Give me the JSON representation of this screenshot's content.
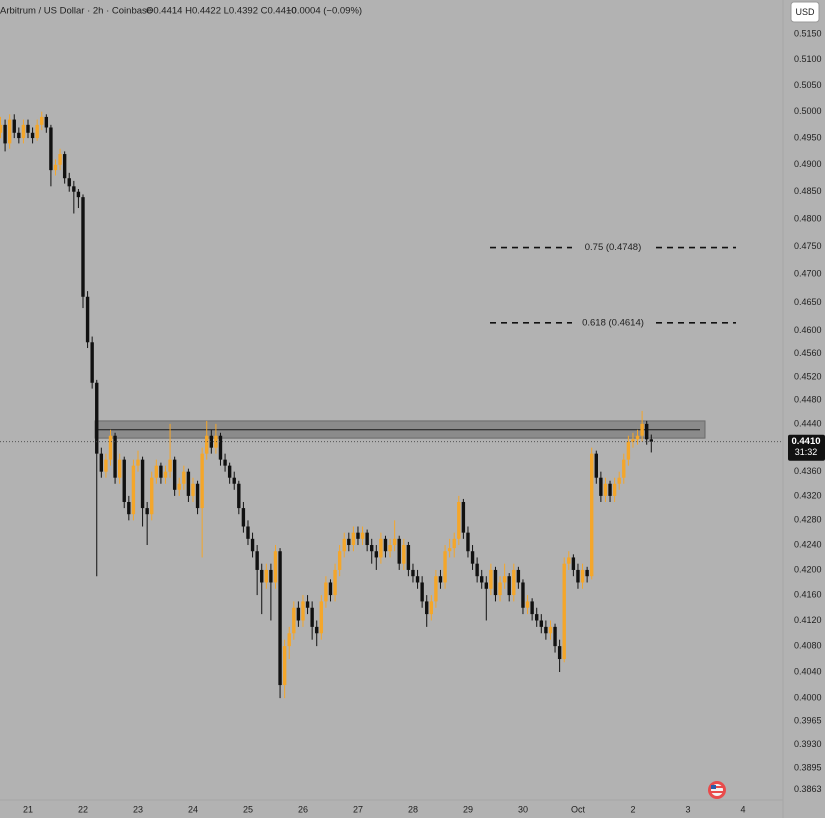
{
  "header": {
    "title": "Arbitrum / US Dollar · 2h · Coinbase",
    "legend": "O0.4414 H0.4422 L0.4392 C0.4410",
    "change": "−0.0004 (−0.09%)",
    "currency": "USD",
    "countdown": "31:32"
  },
  "chart_data": {
    "type": "candlestick",
    "log_scale": true,
    "grid": false,
    "up_color": "#f4a62a",
    "down_color": "#111111",
    "ylim": [
      0.3848,
      0.5217
    ],
    "yticks": [
      {
        "value": 0.515,
        "label": "0.5150"
      },
      {
        "value": 0.51,
        "label": "0.5100"
      },
      {
        "value": 0.505,
        "label": "0.5050"
      },
      {
        "value": 0.5,
        "label": "0.5000"
      },
      {
        "value": 0.495,
        "label": "0.4950"
      },
      {
        "value": 0.49,
        "label": "0.4900"
      },
      {
        "value": 0.485,
        "label": "0.4850"
      },
      {
        "value": 0.48,
        "label": "0.4800"
      },
      {
        "value": 0.475,
        "label": "0.4750"
      },
      {
        "value": 0.47,
        "label": "0.4700"
      },
      {
        "value": 0.465,
        "label": "0.4650"
      },
      {
        "value": 0.46,
        "label": "0.4600"
      },
      {
        "value": 0.456,
        "label": "0.4560"
      },
      {
        "value": 0.452,
        "label": "0.4520"
      },
      {
        "value": 0.448,
        "label": "0.4480"
      },
      {
        "value": 0.444,
        "label": "0.4440"
      },
      {
        "value": 0.436,
        "label": "0.4360"
      },
      {
        "value": 0.432,
        "label": "0.4320"
      },
      {
        "value": 0.428,
        "label": "0.4280"
      },
      {
        "value": 0.424,
        "label": "0.4240"
      },
      {
        "value": 0.42,
        "label": "0.4200"
      },
      {
        "value": 0.416,
        "label": "0.4160"
      },
      {
        "value": 0.412,
        "label": "0.4120"
      },
      {
        "value": 0.408,
        "label": "0.4080"
      },
      {
        "value": 0.404,
        "label": "0.4040"
      },
      {
        "value": 0.4,
        "label": "0.4000"
      },
      {
        "value": 0.3965,
        "label": "0.3965"
      },
      {
        "value": 0.393,
        "label": "0.3930"
      },
      {
        "value": 0.3895,
        "label": "0.3895"
      },
      {
        "value": 0.3863,
        "label": "0.3863"
      }
    ],
    "last_price": {
      "value": 0.441,
      "label": "0.4410"
    },
    "zone": {
      "top": 0.4445,
      "bottom": 0.4416,
      "line": 0.443
    },
    "annotations": [
      {
        "label": "0.75 (0.4748)",
        "value": 0.4748
      },
      {
        "label": "0.618 (0.4614)",
        "value": 0.4614
      }
    ],
    "categories": [
      null,
      null,
      null,
      null,
      null,
      null,
      "21",
      null,
      null,
      null,
      null,
      null,
      null,
      null,
      null,
      null,
      null,
      null,
      "22",
      null,
      null,
      null,
      null,
      null,
      null,
      null,
      null,
      null,
      null,
      null,
      "23",
      null,
      null,
      null,
      null,
      null,
      null,
      null,
      null,
      null,
      null,
      null,
      "24",
      null,
      null,
      null,
      null,
      null,
      null,
      null,
      null,
      null,
      null,
      null,
      "25",
      null,
      null,
      null,
      null,
      null,
      null,
      null,
      null,
      null,
      null,
      null,
      "26",
      null,
      null,
      null,
      null,
      null,
      null,
      null,
      null,
      null,
      null,
      null,
      "27",
      null,
      null,
      null,
      null,
      null,
      null,
      null,
      null,
      null,
      null,
      null,
      "28",
      null,
      null,
      null,
      null,
      null,
      null,
      null,
      null,
      null,
      null,
      null,
      "29",
      null,
      null,
      null,
      null,
      null,
      null,
      null,
      null,
      null,
      null,
      null,
      "30",
      null,
      null,
      null,
      null,
      null,
      null,
      null,
      null,
      null,
      null,
      null,
      "Oct",
      null,
      null,
      null,
      null,
      null,
      null,
      null,
      null,
      null,
      null,
      null,
      "2",
      null,
      null,
      null,
      null,
      null,
      null,
      null,
      null,
      null,
      null,
      null,
      "3",
      null,
      null,
      null,
      null,
      null,
      null,
      null,
      null,
      null,
      null,
      null,
      "4",
      null,
      null,
      null,
      null,
      null,
      null,
      null,
      null
    ],
    "ohlc": [
      [
        0.496,
        0.499,
        0.495,
        0.4975
      ],
      [
        0.4975,
        0.4985,
        0.4925,
        0.494
      ],
      [
        0.494,
        0.4995,
        0.493,
        0.4985
      ],
      [
        0.4985,
        0.4995,
        0.495,
        0.496
      ],
      [
        0.496,
        0.497,
        0.494,
        0.495
      ],
      [
        0.495,
        0.4985,
        0.494,
        0.4975
      ],
      [
        0.4975,
        0.4985,
        0.495,
        0.496
      ],
      [
        0.496,
        0.497,
        0.494,
        0.495
      ],
      [
        0.495,
        0.4985,
        0.4945,
        0.4975
      ],
      [
        0.4975,
        0.5,
        0.4965,
        0.499
      ],
      [
        0.499,
        0.4995,
        0.496,
        0.497
      ],
      [
        0.497,
        0.4975,
        0.486,
        0.489
      ],
      [
        0.489,
        0.491,
        0.488,
        0.49
      ],
      [
        0.49,
        0.493,
        0.489,
        0.492
      ],
      [
        0.492,
        0.4925,
        0.4865,
        0.4875
      ],
      [
        0.4875,
        0.4885,
        0.485,
        0.486
      ],
      [
        0.486,
        0.487,
        0.481,
        0.485
      ],
      [
        0.485,
        0.4855,
        0.482,
        0.484
      ],
      [
        0.484,
        0.4845,
        0.464,
        0.466
      ],
      [
        0.466,
        0.467,
        0.457,
        0.458
      ],
      [
        0.458,
        0.459,
        0.45,
        0.451
      ],
      [
        0.451,
        0.4515,
        0.419,
        0.439
      ],
      [
        0.439,
        0.44,
        0.435,
        0.436
      ],
      [
        0.436,
        0.439,
        0.435,
        0.438
      ],
      [
        0.438,
        0.443,
        0.437,
        0.442
      ],
      [
        0.442,
        0.4425,
        0.434,
        0.435
      ],
      [
        0.435,
        0.439,
        0.434,
        0.438
      ],
      [
        0.438,
        0.4385,
        0.43,
        0.431
      ],
      [
        0.431,
        0.432,
        0.428,
        0.429
      ],
      [
        0.429,
        0.438,
        0.428,
        0.437
      ],
      [
        0.437,
        0.4395,
        0.436,
        0.438
      ],
      [
        0.438,
        0.4385,
        0.427,
        0.43
      ],
      [
        0.43,
        0.431,
        0.424,
        0.429
      ],
      [
        0.429,
        0.436,
        0.428,
        0.435
      ],
      [
        0.435,
        0.438,
        0.434,
        0.437
      ],
      [
        0.437,
        0.4375,
        0.434,
        0.435
      ],
      [
        0.435,
        0.437,
        0.434,
        0.436
      ],
      [
        0.436,
        0.444,
        0.435,
        0.438
      ],
      [
        0.438,
        0.4385,
        0.432,
        0.433
      ],
      [
        0.433,
        0.435,
        0.432,
        0.434
      ],
      [
        0.434,
        0.437,
        0.433,
        0.436
      ],
      [
        0.436,
        0.4365,
        0.431,
        0.432
      ],
      [
        0.432,
        0.435,
        0.431,
        0.434
      ],
      [
        0.434,
        0.4345,
        0.429,
        0.43
      ],
      [
        0.43,
        0.44,
        0.422,
        0.439
      ],
      [
        0.439,
        0.4445,
        0.438,
        0.442
      ],
      [
        0.442,
        0.443,
        0.439,
        0.44
      ],
      [
        0.44,
        0.444,
        0.439,
        0.442
      ],
      [
        0.442,
        0.4425,
        0.437,
        0.438
      ],
      [
        0.438,
        0.439,
        0.436,
        0.437
      ],
      [
        0.437,
        0.4375,
        0.434,
        0.435
      ],
      [
        0.435,
        0.436,
        0.433,
        0.434
      ],
      [
        0.434,
        0.4345,
        0.429,
        0.43
      ],
      [
        0.43,
        0.431,
        0.426,
        0.427
      ],
      [
        0.427,
        0.428,
        0.424,
        0.425
      ],
      [
        0.425,
        0.426,
        0.422,
        0.423
      ],
      [
        0.423,
        0.424,
        0.416,
        0.42
      ],
      [
        0.42,
        0.421,
        0.413,
        0.418
      ],
      [
        0.418,
        0.421,
        0.417,
        0.42
      ],
      [
        0.42,
        0.421,
        0.412,
        0.418
      ],
      [
        0.418,
        0.424,
        0.417,
        0.423
      ],
      [
        0.423,
        0.4235,
        0.4,
        0.402
      ],
      [
        0.402,
        0.409,
        0.4,
        0.408
      ],
      [
        0.408,
        0.411,
        0.406,
        0.41
      ],
      [
        0.41,
        0.415,
        0.409,
        0.414
      ],
      [
        0.414,
        0.415,
        0.411,
        0.412
      ],
      [
        0.412,
        0.416,
        0.411,
        0.415
      ],
      [
        0.415,
        0.416,
        0.413,
        0.414
      ],
      [
        0.414,
        0.415,
        0.409,
        0.411
      ],
      [
        0.411,
        0.412,
        0.408,
        0.41
      ],
      [
        0.41,
        0.416,
        0.409,
        0.415
      ],
      [
        0.415,
        0.419,
        0.414,
        0.418
      ],
      [
        0.418,
        0.4185,
        0.415,
        0.416
      ],
      [
        0.416,
        0.421,
        0.415,
        0.42
      ],
      [
        0.42,
        0.424,
        0.419,
        0.423
      ],
      [
        0.423,
        0.426,
        0.422,
        0.425
      ],
      [
        0.425,
        0.426,
        0.423,
        0.424
      ],
      [
        0.424,
        0.427,
        0.423,
        0.426
      ],
      [
        0.426,
        0.427,
        0.424,
        0.425
      ],
      [
        0.425,
        0.427,
        0.424,
        0.426
      ],
      [
        0.426,
        0.4265,
        0.423,
        0.424
      ],
      [
        0.424,
        0.425,
        0.421,
        0.423
      ],
      [
        0.423,
        0.424,
        0.42,
        0.422
      ],
      [
        0.422,
        0.426,
        0.421,
        0.425
      ],
      [
        0.425,
        0.4255,
        0.422,
        0.423
      ],
      [
        0.423,
        0.425,
        0.422,
        0.424
      ],
      [
        0.424,
        0.428,
        0.423,
        0.425
      ],
      [
        0.425,
        0.4255,
        0.42,
        0.421
      ],
      [
        0.421,
        0.425,
        0.42,
        0.424
      ],
      [
        0.424,
        0.4245,
        0.419,
        0.42
      ],
      [
        0.42,
        0.421,
        0.418,
        0.419
      ],
      [
        0.419,
        0.42,
        0.417,
        0.418
      ],
      [
        0.418,
        0.419,
        0.414,
        0.415
      ],
      [
        0.415,
        0.416,
        0.411,
        0.413
      ],
      [
        0.413,
        0.416,
        0.412,
        0.415
      ],
      [
        0.415,
        0.42,
        0.414,
        0.419
      ],
      [
        0.419,
        0.42,
        0.417,
        0.418
      ],
      [
        0.418,
        0.424,
        0.417,
        0.423
      ],
      [
        0.423,
        0.425,
        0.422,
        0.4235
      ],
      [
        0.4235,
        0.426,
        0.422,
        0.425
      ],
      [
        0.425,
        0.432,
        0.424,
        0.431
      ],
      [
        0.431,
        0.4315,
        0.425,
        0.426
      ],
      [
        0.426,
        0.427,
        0.422,
        0.423
      ],
      [
        0.423,
        0.424,
        0.42,
        0.421
      ],
      [
        0.421,
        0.422,
        0.418,
        0.419
      ],
      [
        0.419,
        0.42,
        0.417,
        0.418
      ],
      [
        0.418,
        0.419,
        0.412,
        0.417
      ],
      [
        0.417,
        0.421,
        0.416,
        0.42
      ],
      [
        0.42,
        0.4205,
        0.415,
        0.416
      ],
      [
        0.416,
        0.419,
        0.415,
        0.418
      ],
      [
        0.418,
        0.421,
        0.417,
        0.419
      ],
      [
        0.419,
        0.4195,
        0.415,
        0.416
      ],
      [
        0.416,
        0.421,
        0.415,
        0.42
      ],
      [
        0.42,
        0.4205,
        0.417,
        0.418
      ],
      [
        0.418,
        0.4185,
        0.413,
        0.414
      ],
      [
        0.414,
        0.416,
        0.413,
        0.415
      ],
      [
        0.415,
        0.4155,
        0.412,
        0.413
      ],
      [
        0.413,
        0.414,
        0.411,
        0.412
      ],
      [
        0.412,
        0.413,
        0.41,
        0.411
      ],
      [
        0.411,
        0.412,
        0.409,
        0.41
      ],
      [
        0.41,
        0.412,
        0.409,
        0.411
      ],
      [
        0.411,
        0.4115,
        0.407,
        0.408
      ],
      [
        0.408,
        0.409,
        0.404,
        0.406
      ],
      [
        0.406,
        0.422,
        0.4055,
        0.421
      ],
      [
        0.421,
        0.423,
        0.42,
        0.422
      ],
      [
        0.422,
        0.4225,
        0.419,
        0.42
      ],
      [
        0.42,
        0.421,
        0.417,
        0.418
      ],
      [
        0.418,
        0.421,
        0.417,
        0.42
      ],
      [
        0.42,
        0.4205,
        0.418,
        0.419
      ],
      [
        0.419,
        0.44,
        0.4185,
        0.439
      ],
      [
        0.439,
        0.4395,
        0.434,
        0.435
      ],
      [
        0.435,
        0.436,
        0.431,
        0.432
      ],
      [
        0.432,
        0.435,
        0.431,
        0.434
      ],
      [
        0.434,
        0.4345,
        0.431,
        0.432
      ],
      [
        0.432,
        0.435,
        0.431,
        0.434
      ],
      [
        0.434,
        0.436,
        0.433,
        0.435
      ],
      [
        0.435,
        0.439,
        0.434,
        0.438
      ],
      [
        0.438,
        0.442,
        0.437,
        0.441
      ],
      [
        0.441,
        0.4425,
        0.44,
        0.4414
      ],
      [
        0.4414,
        0.443,
        0.4405,
        0.442
      ],
      [
        0.442,
        0.4462,
        0.441,
        0.444
      ],
      [
        0.444,
        0.4445,
        0.4405,
        0.4414
      ],
      [
        0.4414,
        0.4422,
        0.4392,
        0.441
      ],
      null,
      null,
      null,
      null,
      null,
      null,
      null,
      null,
      null,
      null,
      null,
      null,
      null,
      null,
      null,
      null,
      null,
      null,
      null,
      null,
      null,
      null,
      null,
      null,
      null,
      null,
      null,
      null
    ]
  }
}
